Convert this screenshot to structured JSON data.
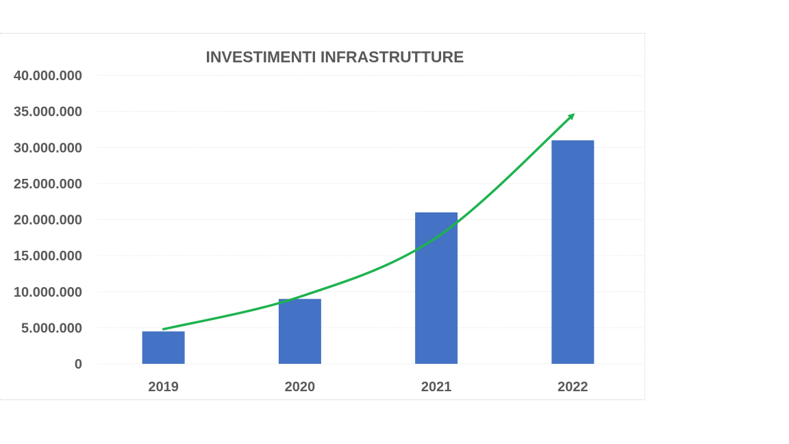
{
  "chart_data": {
    "type": "bar",
    "title": "INVESTIMENTI INFRASTRUTTURE",
    "xlabel": "",
    "ylabel": "",
    "categories": [
      "2019",
      "2020",
      "2021",
      "2022"
    ],
    "values": [
      4500000,
      9000000,
      21000000,
      31000000
    ],
    "ylim": [
      0,
      40000000
    ],
    "y_ticks": [
      "0",
      "5.000.000",
      "10.000.000",
      "15.000.000",
      "20.000.000",
      "25.000.000",
      "30.000.000",
      "35.000.000",
      "40.000.000"
    ],
    "grid": true,
    "legend": "none",
    "bar_color": "#4472C4",
    "trend_arrow": {
      "color": "#1DB34F",
      "points": [
        [
          0,
          4800000
        ],
        [
          1,
          9300000
        ],
        [
          2,
          17500000
        ],
        [
          3,
          34500000
        ]
      ]
    }
  }
}
